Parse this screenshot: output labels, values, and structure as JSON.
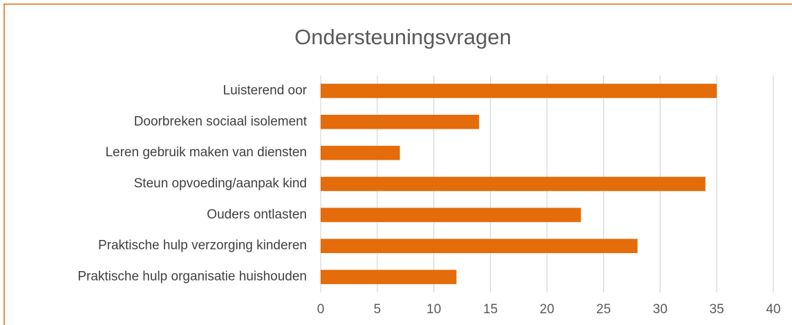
{
  "chart_data": {
    "type": "bar",
    "orientation": "horizontal",
    "title": "Ondersteuningsvragen",
    "categories": [
      "Luisterend oor",
      "Doorbreken sociaal isolement",
      "Leren gebruik maken van diensten",
      "Steun opvoeding/aanpak kind",
      "Ouders ontlasten",
      "Praktische hulp verzorging kinderen",
      "Praktische hulp organisatie huishouden"
    ],
    "values": [
      35,
      14,
      7,
      34,
      23,
      28,
      12
    ],
    "color": "#e46c0a",
    "xlim": [
      0,
      40
    ],
    "xticks": [
      0,
      5,
      10,
      15,
      20,
      25,
      30,
      35,
      40
    ],
    "grid": true
  }
}
